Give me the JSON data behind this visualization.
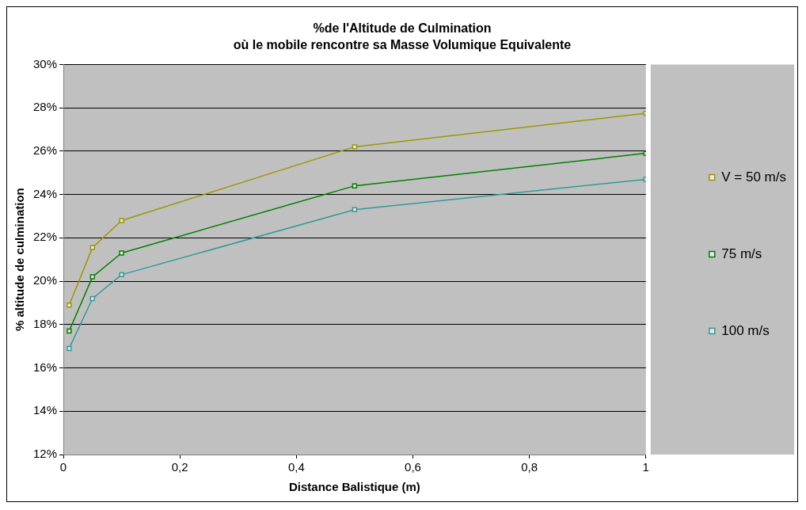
{
  "chart_data": {
    "type": "line",
    "title": "%de l'Altitude de Culmination",
    "subtitle": "où le mobile rencontre sa Masse Volumique Equivalente",
    "xlabel": "Distance Balistique (m)",
    "ylabel": "% altitude de culmination",
    "x": [
      0.01,
      0.05,
      0.1,
      0.5,
      1
    ],
    "series": [
      {
        "name": "V = 50 m/s",
        "color": "#999900",
        "values": [
          18.9,
          21.55,
          22.8,
          26.2,
          27.75
        ]
      },
      {
        "name": "75 m/s",
        "color": "#008000",
        "values": [
          17.7,
          20.2,
          21.3,
          24.4,
          25.9
        ]
      },
      {
        "name": "100 m/s",
        "color": "#339999",
        "values": [
          16.9,
          19.2,
          20.3,
          23.3,
          24.7
        ]
      }
    ],
    "xlim": [
      0,
      1
    ],
    "xticks": [
      0,
      {
        "value": 0.2,
        "label": "0,2"
      },
      {
        "value": 0.4,
        "label": "0,4"
      },
      {
        "value": 0.6,
        "label": "0,6"
      },
      {
        "value": 0.8,
        "label": "0,8"
      },
      1
    ],
    "ylim": [
      12,
      30
    ],
    "yticks": [
      {
        "value": 12,
        "label": "12%"
      },
      {
        "value": 14,
        "label": "14%"
      },
      {
        "value": 16,
        "label": "16%"
      },
      {
        "value": 18,
        "label": "18%"
      },
      {
        "value": 20,
        "label": "20%"
      },
      {
        "value": 22,
        "label": "22%"
      },
      {
        "value": 24,
        "label": "24%"
      },
      {
        "value": 26,
        "label": "26%"
      },
      {
        "value": 28,
        "label": "28%"
      },
      {
        "value": 30,
        "label": "30%"
      }
    ],
    "grid": "y",
    "legend": "right",
    "marker": "square",
    "line_style": "solid"
  }
}
